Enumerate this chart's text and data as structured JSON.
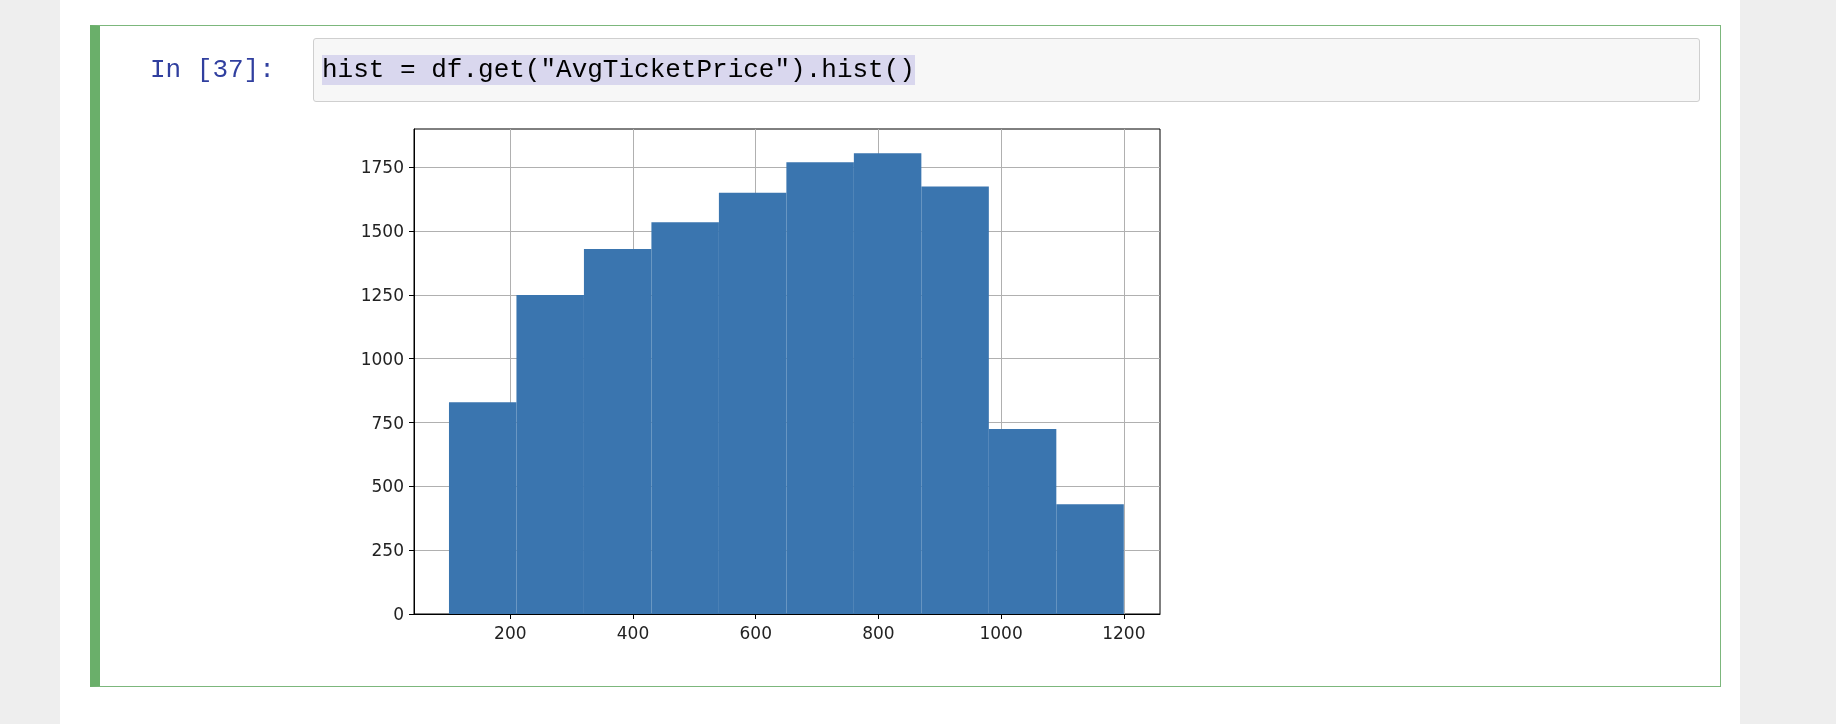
{
  "chart_data": {
    "type": "histogram",
    "annotations": [
      "In [37]:",
      "hist = df.get(\"AvgTicketPrice\").hist()"
    ],
    "bins": [
      100,
      210,
      320,
      430,
      540,
      650,
      760,
      870,
      980,
      1090,
      1200
    ],
    "values": [
      830,
      1250,
      1430,
      1535,
      1650,
      1770,
      1805,
      1675,
      725,
      430
    ],
    "color": "#3a75af",
    "xlim": [
      43,
      1259
    ],
    "xticks": [
      200,
      400,
      600,
      800,
      1000,
      1200
    ],
    "ylim": [
      0,
      1900
    ],
    "yticks": [
      0,
      250,
      500,
      750,
      1000,
      1250,
      1500,
      1750
    ],
    "grid": true
  }
}
